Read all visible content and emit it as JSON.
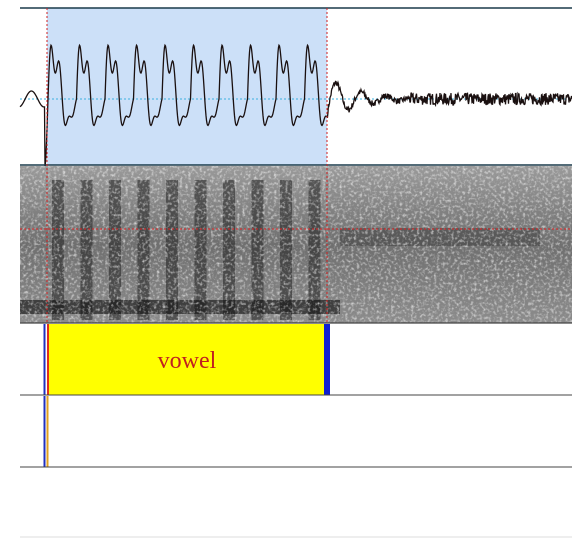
{
  "tiers": [
    {
      "intervals": [
        {
          "label": "vowel"
        }
      ]
    }
  ]
}
